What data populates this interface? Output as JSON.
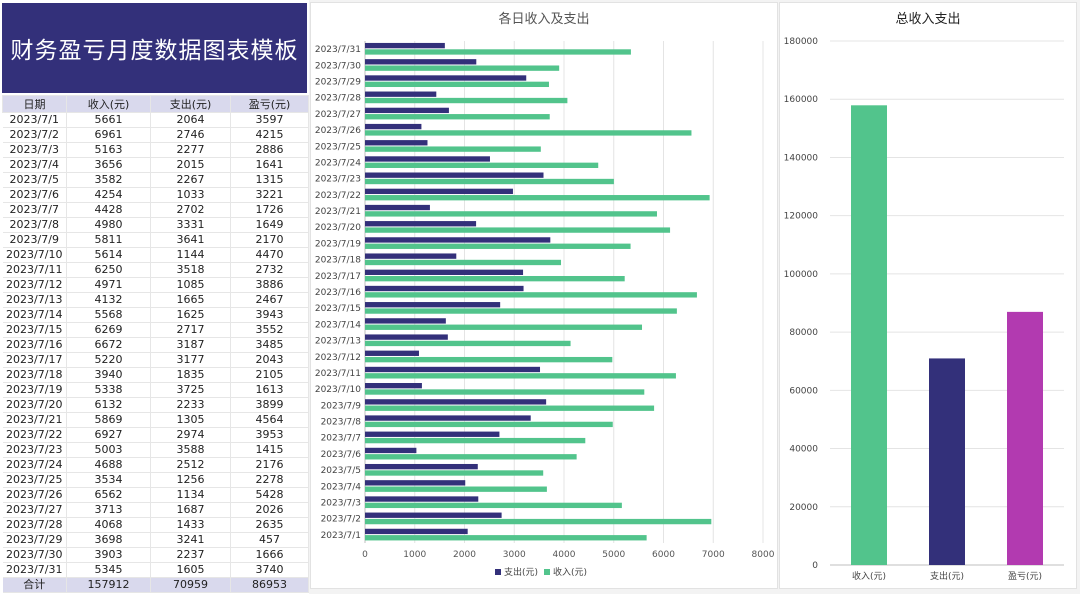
{
  "title": "财务盈亏月度数据图表模板",
  "table": {
    "headers": [
      "日期",
      "收入(元)",
      "支出(元)",
      "盈亏(元)"
    ],
    "rows": [
      [
        "2023/7/1",
        "5661",
        "2064",
        "3597"
      ],
      [
        "2023/7/2",
        "6961",
        "2746",
        "4215"
      ],
      [
        "2023/7/3",
        "5163",
        "2277",
        "2886"
      ],
      [
        "2023/7/4",
        "3656",
        "2015",
        "1641"
      ],
      [
        "2023/7/5",
        "3582",
        "2267",
        "1315"
      ],
      [
        "2023/7/6",
        "4254",
        "1033",
        "3221"
      ],
      [
        "2023/7/7",
        "4428",
        "2702",
        "1726"
      ],
      [
        "2023/7/8",
        "4980",
        "3331",
        "1649"
      ],
      [
        "2023/7/9",
        "5811",
        "3641",
        "2170"
      ],
      [
        "2023/7/10",
        "5614",
        "1144",
        "4470"
      ],
      [
        "2023/7/11",
        "6250",
        "3518",
        "2732"
      ],
      [
        "2023/7/12",
        "4971",
        "1085",
        "3886"
      ],
      [
        "2023/7/13",
        "4132",
        "1665",
        "2467"
      ],
      [
        "2023/7/14",
        "5568",
        "1625",
        "3943"
      ],
      [
        "2023/7/15",
        "6269",
        "2717",
        "3552"
      ],
      [
        "2023/7/16",
        "6672",
        "3187",
        "3485"
      ],
      [
        "2023/7/17",
        "5220",
        "3177",
        "2043"
      ],
      [
        "2023/7/18",
        "3940",
        "1835",
        "2105"
      ],
      [
        "2023/7/19",
        "5338",
        "3725",
        "1613"
      ],
      [
        "2023/7/20",
        "6132",
        "2233",
        "3899"
      ],
      [
        "2023/7/21",
        "5869",
        "1305",
        "4564"
      ],
      [
        "2023/7/22",
        "6927",
        "2974",
        "3953"
      ],
      [
        "2023/7/23",
        "5003",
        "3588",
        "1415"
      ],
      [
        "2023/7/24",
        "4688",
        "2512",
        "2176"
      ],
      [
        "2023/7/25",
        "3534",
        "1256",
        "2278"
      ],
      [
        "2023/7/26",
        "6562",
        "1134",
        "5428"
      ],
      [
        "2023/7/27",
        "3713",
        "1687",
        "2026"
      ],
      [
        "2023/7/28",
        "4068",
        "1433",
        "2635"
      ],
      [
        "2023/7/29",
        "3698",
        "3241",
        "457"
      ],
      [
        "2023/7/30",
        "3903",
        "2237",
        "1666"
      ],
      [
        "2023/7/31",
        "5345",
        "1605",
        "3740"
      ]
    ],
    "total": [
      "合计",
      "157912",
      "70959",
      "86953"
    ]
  },
  "colors": {
    "income": "#52c48c",
    "expense": "#33307a",
    "profit": "#b23ab0",
    "header": "#d9d9ed"
  },
  "chart_data": [
    {
      "type": "bar",
      "orientation": "horizontal",
      "title": "各日收入及支出",
      "categories": [
        "2023/7/1",
        "2023/7/2",
        "2023/7/3",
        "2023/7/4",
        "2023/7/5",
        "2023/7/6",
        "2023/7/7",
        "2023/7/8",
        "2023/7/9",
        "2023/7/10",
        "2023/7/11",
        "2023/7/12",
        "2023/7/13",
        "2023/7/14",
        "2023/7/15",
        "2023/7/16",
        "2023/7/17",
        "2023/7/18",
        "2023/7/19",
        "2023/7/20",
        "2023/7/21",
        "2023/7/22",
        "2023/7/23",
        "2023/7/24",
        "2023/7/25",
        "2023/7/26",
        "2023/7/27",
        "2023/7/28",
        "2023/7/29",
        "2023/7/30",
        "2023/7/31"
      ],
      "series": [
        {
          "name": "支出(元)",
          "values": [
            2064,
            2746,
            2277,
            2015,
            2267,
            1033,
            2702,
            3331,
            3641,
            1144,
            3518,
            1085,
            1665,
            1625,
            2717,
            3187,
            3177,
            1835,
            3725,
            2233,
            1305,
            2974,
            3588,
            2512,
            1256,
            1134,
            1687,
            1433,
            3241,
            2237,
            1605
          ]
        },
        {
          "name": "收入(元)",
          "values": [
            5661,
            6961,
            5163,
            3656,
            3582,
            4254,
            4428,
            4980,
            5811,
            5614,
            6250,
            4971,
            4132,
            5568,
            6269,
            6672,
            5220,
            3940,
            5338,
            6132,
            5869,
            6927,
            5003,
            4688,
            3534,
            6562,
            3713,
            4068,
            3698,
            3903,
            5345
          ]
        }
      ],
      "xlim": [
        0,
        8000
      ],
      "xticks": [
        "0",
        "1000",
        "2000",
        "3000",
        "4000",
        "5000",
        "6000",
        "7000",
        "8000"
      ],
      "legend": "bottom"
    },
    {
      "type": "bar",
      "title": "总收入支出",
      "categories": [
        "收入(元)",
        "支出(元)",
        "盈亏(元)"
      ],
      "values": [
        157912,
        70959,
        86953
      ],
      "ylim": [
        0,
        180000
      ],
      "yticks": [
        "0",
        "20000",
        "40000",
        "60000",
        "80000",
        "100000",
        "120000",
        "140000",
        "160000",
        "180000"
      ]
    }
  ]
}
